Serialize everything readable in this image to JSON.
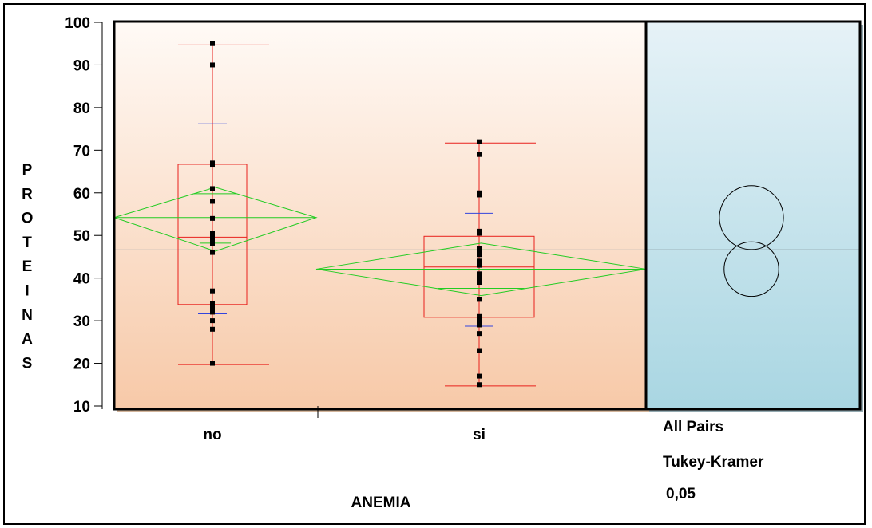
{
  "chart_data": {
    "type": "box",
    "xlabel": "ANEMIA",
    "ylabel": "PROTEINAS",
    "ylim": [
      10,
      100
    ],
    "yticks": [
      10,
      20,
      30,
      40,
      50,
      60,
      70,
      80,
      90,
      100
    ],
    "grand_mean": 46.6,
    "groups": [
      {
        "label": "no",
        "points": [
          95,
          90,
          67,
          66.5,
          61,
          58,
          54,
          50.5,
          50,
          49,
          48.5,
          48,
          46,
          37,
          34,
          33,
          32,
          30,
          28,
          20
        ],
        "box": {
          "q1": 33.8,
          "median": 49.6,
          "q3": 66.7
        },
        "whisker": {
          "low": 19.7,
          "high": 94.7
        },
        "mean": 54.2,
        "mean_ci": [
          46.3,
          61.3
        ],
        "overlap_marks": [
          48.2,
          59.8
        ],
        "std_marks": [
          31.6,
          76.2
        ]
      },
      {
        "label": "si",
        "points": [
          72,
          69,
          60,
          59.5,
          51,
          50.5,
          47,
          46,
          45.5,
          44,
          43,
          41,
          40,
          39,
          35,
          31,
          30.5,
          30,
          29,
          27,
          23,
          17,
          15
        ],
        "box": {
          "q1": 30.8,
          "median": 42.6,
          "q3": 49.8
        },
        "whisker": {
          "low": 14.7,
          "high": 71.7
        },
        "mean": 42.1,
        "mean_ci": [
          35.9,
          48.2
        ],
        "overlap_marks": [
          37.6,
          46.6
        ],
        "std_marks": [
          28.7,
          55.2
        ]
      }
    ],
    "comparison_circles": [
      {
        "group": "no",
        "center": 54.2,
        "radius": 7.5
      },
      {
        "group": "si",
        "center": 42.1,
        "radius": 6.4
      }
    ],
    "comparison_label": [
      "All Pairs",
      "Tukey-Kramer",
      "0,05"
    ],
    "colors": {
      "box": "#e8201c",
      "diamond": "#22cc22",
      "std_marks": "#3344dd",
      "points": "#000000",
      "grand_mean_line": "#b0b0b0",
      "plot_bg_top": "#fffaf6",
      "plot_bg_bottom": "#f7c9a8",
      "circle_bg_top": "#e6f2f7",
      "circle_bg_bottom": "#a9d6e2"
    }
  }
}
